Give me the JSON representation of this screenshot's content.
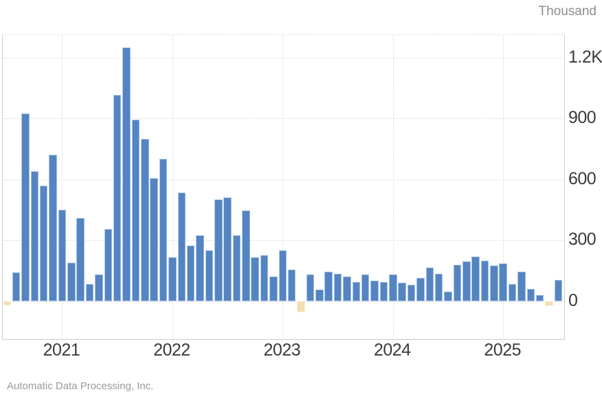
{
  "header": {
    "unit_label": "Thousand"
  },
  "source": {
    "attribution": "Automatic Data Processing, Inc."
  },
  "chart_data": {
    "type": "bar",
    "unit_label": "Thousand",
    "source": "Automatic Data Processing, Inc.",
    "grid": true,
    "y_axis_side": "right",
    "ylim": [
      -187,
      1310
    ],
    "y_ticks": [
      {
        "value": 0,
        "label": "0"
      },
      {
        "value": 300,
        "label": "300"
      },
      {
        "value": 600,
        "label": "600"
      },
      {
        "value": 900,
        "label": "900"
      },
      {
        "value": 1200,
        "label": "1.2K"
      }
    ],
    "x_ticks": [
      {
        "label": "2021",
        "month_index": 6
      },
      {
        "label": "2022",
        "month_index": 18
      },
      {
        "label": "2023",
        "month_index": 30
      },
      {
        "label": "2024",
        "month_index": 42
      },
      {
        "label": "2025",
        "month_index": 54
      }
    ],
    "colors": {
      "positive_fill": "#5484c2",
      "positive_border": "#a6c1e0",
      "negative_fill": "#f2deb2",
      "negative_border": "#f8eed8",
      "gridline": "#d9d9d9",
      "axis": "#cccccc",
      "tick_text": "#3a3a3a",
      "muted_text": "#8c8c8c"
    },
    "x": [
      "Jul 2020",
      "Aug 2020",
      "Sep 2020",
      "Oct 2020",
      "Nov 2020",
      "Dec 2020",
      "Jan 2021",
      "Feb 2021",
      "Mar 2021",
      "Apr 2021",
      "May 2021",
      "Jun 2021",
      "Jul 2021",
      "Aug 2021",
      "Sep 2021",
      "Oct 2021",
      "Nov 2021",
      "Dec 2021",
      "Jan 2022",
      "Feb 2022",
      "Mar 2022",
      "Apr 2022",
      "May 2022",
      "Jun 2022",
      "Jul 2022",
      "Aug 2022",
      "Sep 2022",
      "Oct 2022",
      "Nov 2022",
      "Dec 2022",
      "Jan 2023",
      "Feb 2023",
      "Mar 2023",
      "Apr 2023",
      "May 2023",
      "Jun 2023",
      "Jul 2023",
      "Aug 2023",
      "Sep 2023",
      "Oct 2023",
      "Nov 2023",
      "Dec 2023",
      "Jan 2024",
      "Feb 2024",
      "Mar 2024",
      "Apr 2024",
      "May 2024",
      "Jun 2024",
      "Jul 2024",
      "Aug 2024",
      "Sep 2024",
      "Oct 2024",
      "Nov 2024",
      "Dec 2024",
      "Jan 2025",
      "Feb 2025",
      "Mar 2025",
      "Apr 2025",
      "May 2025",
      "Jun 2025",
      "Jul 2025"
    ],
    "values": [
      -20,
      140,
      925,
      640,
      570,
      720,
      450,
      190,
      410,
      85,
      130,
      355,
      1015,
      1250,
      895,
      800,
      605,
      700,
      215,
      535,
      275,
      325,
      250,
      500,
      510,
      325,
      445,
      215,
      225,
      120,
      250,
      155,
      -55,
      130,
      55,
      145,
      135,
      120,
      95,
      130,
      100,
      95,
      130,
      90,
      80,
      115,
      165,
      135,
      45,
      180,
      195,
      220,
      200,
      175,
      185,
      85,
      145,
      60,
      30,
      -25,
      105
    ]
  }
}
